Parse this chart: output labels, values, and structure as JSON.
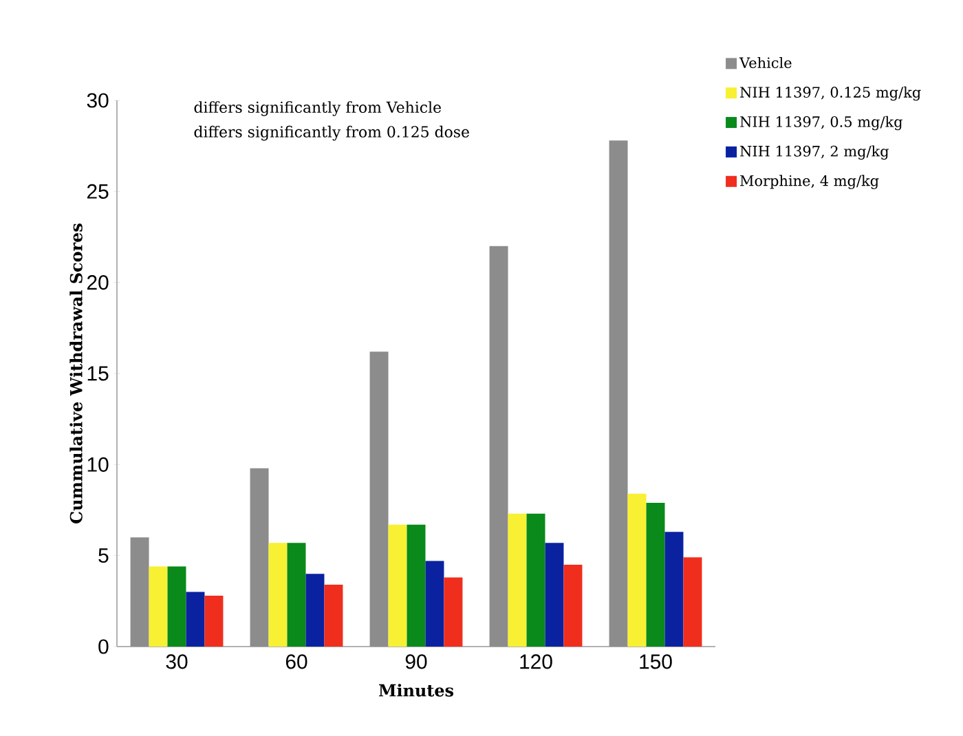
{
  "chart_data": {
    "type": "bar",
    "xlabel": "Minutes",
    "ylabel": "Cummulative Withdrawal Scores",
    "categories": [
      "30",
      "60",
      "90",
      "120",
      "150"
    ],
    "series": [
      {
        "name": "Vehicle",
        "color": "#8c8c8c",
        "values": [
          6.0,
          9.8,
          16.2,
          22.0,
          27.8
        ]
      },
      {
        "name": "NIH 11397, 0.125 mg/kg",
        "color": "#f8f032",
        "values": [
          4.4,
          5.7,
          6.7,
          7.3,
          8.4
        ]
      },
      {
        "name": "NIH 11397, 0.5 mg/kg",
        "color": "#0a8a1a",
        "values": [
          4.4,
          5.7,
          6.7,
          7.3,
          7.9
        ]
      },
      {
        "name": "NIH 11397, 2 mg/kg",
        "color": "#0a22a0",
        "values": [
          3.0,
          4.0,
          4.7,
          5.7,
          6.3
        ]
      },
      {
        "name": "Morphine, 4 mg/kg",
        "color": "#f02e1e",
        "values": [
          2.8,
          3.4,
          3.8,
          4.5,
          4.9
        ]
      }
    ],
    "ylim": [
      0,
      30
    ],
    "yticks": [
      0,
      5,
      10,
      15,
      20,
      25,
      30
    ],
    "annotations": [
      "differs significantly from Vehicle",
      "differs significantly from 0.125 dose"
    ],
    "legend": "top right"
  }
}
